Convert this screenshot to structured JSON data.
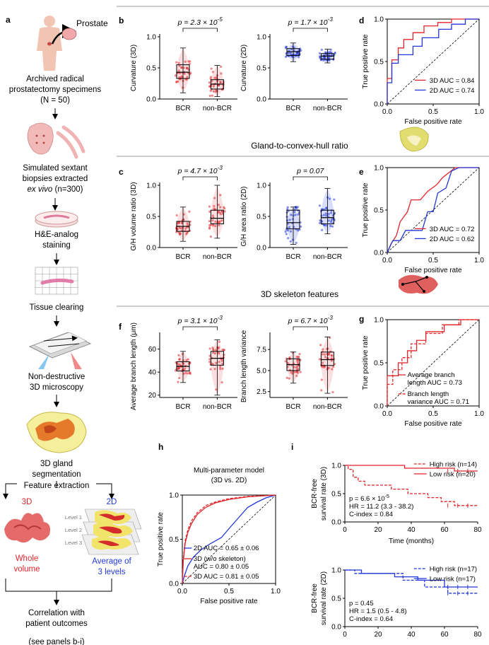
{
  "colors": {
    "red": "#e0262b",
    "blue": "#2238d8",
    "lightred": "#f3a3a6",
    "lightblue": "#8f9ef0",
    "grey": "#888888"
  },
  "panel_a": {
    "label": "a",
    "prostate_label": "Prostate",
    "specimens": "Archived radical",
    "specimens2": "prostatectomy specimens",
    "specimens_n": "(N = 50)",
    "biopsies1": "Simulated sextant",
    "biopsies2": "biopsies extracted",
    "biopsies3_a": "ex vivo",
    "biopsies3_b": " (n=300)",
    "he1": "H&E-analog",
    "he2": "staining",
    "clearing": "Tissue clearing",
    "micro1": "Non-destructive",
    "micro2": "3D microscopy",
    "seg1": "3D gland",
    "seg2": "segmentation",
    "feature": "Feature extraction",
    "label_3d": "3D",
    "label_2d": "2D",
    "levels": [
      "Level 1",
      "Level 2",
      "Level 3"
    ],
    "whole1": "Whole",
    "whole2": "volume",
    "avg1": "Average of",
    "avg2": "3 levels",
    "corr1": "Correlation with",
    "corr2": "patient outcomes",
    "corr3": "(see panels b-i)"
  },
  "sections": {
    "hull": "Gland-to-convex-hull ratio",
    "skeleton": "3D skeleton features"
  },
  "chart_data": [
    {
      "panel": "b",
      "type": "box",
      "title_p": "p = 2.3 × 10",
      "title_exp": "-5",
      "ylabel": "Curvature (3D)",
      "categories": [
        "BCR",
        "non-BCR"
      ],
      "ylim": [
        0,
        1.0
      ],
      "yticks": [
        "0.0",
        "0.5",
        "1.0"
      ],
      "boxes": [
        {
          "q1": 0.33,
          "median": 0.43,
          "q3": 0.55,
          "lo": 0.1,
          "hi": 0.82
        },
        {
          "q1": 0.16,
          "median": 0.24,
          "q3": 0.31,
          "lo": 0.04,
          "hi": 0.54
        }
      ],
      "color": "red"
    },
    {
      "panel": "b2",
      "type": "box",
      "title_p": "p = 1.7 × 10",
      "title_exp": "-3",
      "ylabel": "Curvature (2D)",
      "categories": [
        "BCR",
        "non-BCR"
      ],
      "ylim": [
        0,
        1.0
      ],
      "yticks": [
        "0.0",
        "0.5",
        "1.0"
      ],
      "boxes": [
        {
          "q1": 0.7,
          "median": 0.76,
          "q3": 0.81,
          "lo": 0.6,
          "hi": 0.9
        },
        {
          "q1": 0.64,
          "median": 0.69,
          "q3": 0.73,
          "lo": 0.58,
          "hi": 0.8
        }
      ],
      "color": "blue"
    },
    {
      "panel": "c",
      "type": "box",
      "title_p": "p = 4.7 × 10",
      "title_exp": "-3",
      "ylabel": "G/H volume ratio (3D)",
      "categories": [
        "BCR",
        "non-BCR"
      ],
      "ylim": [
        0,
        1.0
      ],
      "yticks": [
        "0.0",
        "0.5",
        "1.0"
      ],
      "boxes": [
        {
          "q1": 0.26,
          "median": 0.34,
          "q3": 0.42,
          "lo": 0.1,
          "hi": 0.65
        },
        {
          "q1": 0.38,
          "median": 0.47,
          "q3": 0.6,
          "lo": 0.15,
          "hi": 1.0
        }
      ],
      "color": "red"
    },
    {
      "panel": "c2",
      "type": "box",
      "title_p": "p = 0.07",
      "title_exp": "",
      "ylabel": "G/H area ratio (2D)",
      "categories": [
        "BCR",
        "non-BCR"
      ],
      "ylim": [
        0,
        1.0
      ],
      "yticks": [
        "0.0",
        "0.5",
        "1.0"
      ],
      "boxes": [
        {
          "q1": 0.3,
          "median": 0.4,
          "q3": 0.6,
          "lo": 0.05,
          "hi": 0.65
        },
        {
          "q1": 0.38,
          "median": 0.48,
          "q3": 0.6,
          "lo": 0.22,
          "hi": 0.95
        }
      ],
      "color": "blue"
    },
    {
      "panel": "f",
      "type": "box",
      "title_p": "p = 3.1 × 10",
      "title_exp": "-3",
      "ylabel": "Average branch length (μm)",
      "categories": [
        "BCR",
        "non-BCR"
      ],
      "ylim": [
        18,
        72
      ],
      "yticks": [
        "20",
        "40",
        "60"
      ],
      "boxes": [
        {
          "q1": 41,
          "median": 45,
          "q3": 49,
          "lo": 31,
          "hi": 58
        },
        {
          "q1": 46,
          "median": 52,
          "q3": 58,
          "lo": 20,
          "hi": 68
        }
      ],
      "color": "red"
    },
    {
      "panel": "f2",
      "type": "box",
      "title_p": "p = 6.7 × 10",
      "title_exp": "-3",
      "ylabel": "Branch length variance",
      "categories": [
        "BCR",
        "non-BCR"
      ],
      "ylim": [
        1.8,
        9.2
      ],
      "yticks": [
        "2.5",
        "5.0",
        "7.5"
      ],
      "boxes": [
        {
          "q1": 5.0,
          "median": 5.7,
          "q3": 6.4,
          "lo": 3.5,
          "hi": 7.2
        },
        {
          "q1": 5.6,
          "median": 6.3,
          "q3": 7.2,
          "lo": 2.3,
          "hi": 9.0
        }
      ],
      "color": "red"
    },
    {
      "panel": "d",
      "type": "roc",
      "xlabel": "False positive rate",
      "ylabel": "True positive rate",
      "ticks": [
        "0.0",
        "0.5",
        "1.0"
      ],
      "series": [
        {
          "name": "3D AUC = 0.84",
          "color": "red",
          "points": [
            [
              0,
              0
            ],
            [
              0,
              0.3
            ],
            [
              0.05,
              0.3
            ],
            [
              0.05,
              0.52
            ],
            [
              0.12,
              0.52
            ],
            [
              0.12,
              0.66
            ],
            [
              0.18,
              0.66
            ],
            [
              0.18,
              0.76
            ],
            [
              0.28,
              0.76
            ],
            [
              0.28,
              0.84
            ],
            [
              0.4,
              0.84
            ],
            [
              0.4,
              0.92
            ],
            [
              0.55,
              0.92
            ],
            [
              0.55,
              0.96
            ],
            [
              0.7,
              0.96
            ],
            [
              0.7,
              1
            ],
            [
              1,
              1
            ]
          ]
        },
        {
          "name": "2D AUC = 0.74",
          "color": "blue",
          "points": [
            [
              0,
              0
            ],
            [
              0,
              0.25
            ],
            [
              0.05,
              0.25
            ],
            [
              0.05,
              0.48
            ],
            [
              0.12,
              0.48
            ],
            [
              0.12,
              0.58
            ],
            [
              0.28,
              0.58
            ],
            [
              0.28,
              0.68
            ],
            [
              0.38,
              0.68
            ],
            [
              0.38,
              0.78
            ],
            [
              0.56,
              0.78
            ],
            [
              0.56,
              0.88
            ],
            [
              0.7,
              0.88
            ],
            [
              0.7,
              0.94
            ],
            [
              0.85,
              0.94
            ],
            [
              0.85,
              1
            ],
            [
              1,
              1
            ]
          ]
        }
      ]
    },
    {
      "panel": "e",
      "type": "roc",
      "xlabel": "False positive rate",
      "ylabel": "True positive rate",
      "ticks": [
        "0.0",
        "0.5",
        "1.0"
      ],
      "series": [
        {
          "name": "3D AUC = 0.72",
          "color": "red",
          "points": [
            [
              0,
              0
            ],
            [
              0.04,
              0.1
            ],
            [
              0.1,
              0.2
            ],
            [
              0.14,
              0.36
            ],
            [
              0.22,
              0.48
            ],
            [
              0.26,
              0.62
            ],
            [
              0.36,
              0.62
            ],
            [
              0.44,
              0.72
            ],
            [
              0.54,
              0.8
            ],
            [
              0.6,
              0.88
            ],
            [
              0.74,
              1
            ],
            [
              1,
              1
            ]
          ]
        },
        {
          "name": "2D AUC = 0.62",
          "color": "blue",
          "points": [
            [
              0,
              0
            ],
            [
              0.06,
              0.14
            ],
            [
              0.14,
              0.14
            ],
            [
              0.2,
              0.26
            ],
            [
              0.38,
              0.26
            ],
            [
              0.44,
              0.48
            ],
            [
              0.5,
              0.48
            ],
            [
              0.55,
              0.7
            ],
            [
              0.64,
              0.76
            ],
            [
              0.7,
              0.96
            ],
            [
              0.78,
              1
            ],
            [
              1,
              1
            ]
          ]
        }
      ]
    },
    {
      "panel": "g",
      "type": "roc",
      "xlabel": "False positive rate",
      "ylabel": "True positive rate",
      "ticks": [
        "0.0",
        "0.5",
        "1.0"
      ],
      "series": [
        {
          "name": "Average branch length AUC = 0.73",
          "color": "red",
          "dash": false,
          "points": [
            [
              0,
              0
            ],
            [
              0,
              0.35
            ],
            [
              0.12,
              0.35
            ],
            [
              0.12,
              0.5
            ],
            [
              0.22,
              0.5
            ],
            [
              0.22,
              0.64
            ],
            [
              0.32,
              0.64
            ],
            [
              0.32,
              0.76
            ],
            [
              0.42,
              0.76
            ],
            [
              0.42,
              0.86
            ],
            [
              0.62,
              0.86
            ],
            [
              0.62,
              0.94
            ],
            [
              0.8,
              0.94
            ],
            [
              0.8,
              1
            ],
            [
              1,
              1
            ]
          ]
        },
        {
          "name": "Branch length variance AUC = 0.71",
          "color": "red",
          "dash": true,
          "points": [
            [
              0,
              0
            ],
            [
              0,
              0.25
            ],
            [
              0.06,
              0.25
            ],
            [
              0.06,
              0.42
            ],
            [
              0.16,
              0.42
            ],
            [
              0.16,
              0.56
            ],
            [
              0.26,
              0.56
            ],
            [
              0.26,
              0.72
            ],
            [
              0.42,
              0.72
            ],
            [
              0.42,
              0.84
            ],
            [
              0.6,
              0.84
            ],
            [
              0.6,
              0.94
            ],
            [
              0.78,
              0.94
            ],
            [
              0.78,
              1
            ],
            [
              1,
              1
            ]
          ]
        }
      ]
    },
    {
      "panel": "h",
      "type": "roc",
      "title1": "Multi-parameter model",
      "title2": "(3D vs. 2D)",
      "xlabel": "False positive rate",
      "ylabel": "True positive rate",
      "ticks": [
        "0.0",
        "0.5",
        "1.0"
      ],
      "series": [
        {
          "name": "2D AUC = 0.65 ± 0.06",
          "color": "blue",
          "dash": false,
          "points": [
            [
              0,
              0
            ],
            [
              0.02,
              0.08
            ],
            [
              0.06,
              0.2
            ],
            [
              0.12,
              0.3
            ],
            [
              0.2,
              0.38
            ],
            [
              0.3,
              0.45
            ],
            [
              0.42,
              0.52
            ],
            [
              0.5,
              0.62
            ],
            [
              0.6,
              0.74
            ],
            [
              0.7,
              0.86
            ],
            [
              0.8,
              0.92
            ],
            [
              0.9,
              0.97
            ],
            [
              1,
              1
            ]
          ]
        },
        {
          "name1": "3D (w/o skeleton)",
          "name": "AUC = 0.80 ± 0.05",
          "color": "red",
          "dash": false,
          "points": [
            [
              0,
              0
            ],
            [
              0.01,
              0.25
            ],
            [
              0.03,
              0.45
            ],
            [
              0.06,
              0.58
            ],
            [
              0.1,
              0.68
            ],
            [
              0.16,
              0.78
            ],
            [
              0.25,
              0.86
            ],
            [
              0.35,
              0.91
            ],
            [
              0.5,
              0.95
            ],
            [
              0.7,
              0.98
            ],
            [
              1,
              1
            ]
          ]
        },
        {
          "name": "3D AUC = 0.81 ± 0.05",
          "color": "red",
          "dash": true,
          "points": [
            [
              0,
              0
            ],
            [
              0.01,
              0.28
            ],
            [
              0.03,
              0.48
            ],
            [
              0.06,
              0.61
            ],
            [
              0.1,
              0.71
            ],
            [
              0.16,
              0.8
            ],
            [
              0.25,
              0.88
            ],
            [
              0.35,
              0.92
            ],
            [
              0.5,
              0.96
            ],
            [
              0.7,
              0.985
            ],
            [
              1,
              1
            ]
          ]
        }
      ]
    },
    {
      "panel": "i1",
      "type": "km",
      "ylabel1": "BCR-free",
      "ylabel2": "survival rate (3D)",
      "xlabel": "Time (months)",
      "xticks": [
        "0",
        "20",
        "40",
        "60",
        "80"
      ],
      "yticks": [
        "0.0",
        "0.5",
        "1.0"
      ],
      "series": [
        {
          "name": "High risk (n=14)",
          "color": "red",
          "dash": true,
          "points": [
            [
              0,
              1
            ],
            [
              2,
              0.93
            ],
            [
              5,
              0.79
            ],
            [
              8,
              0.72
            ],
            [
              12,
              0.65
            ],
            [
              28,
              0.58
            ],
            [
              38,
              0.5
            ],
            [
              50,
              0.43
            ],
            [
              58,
              0.36
            ],
            [
              66,
              0.29
            ],
            [
              80,
              0.29
            ]
          ]
        },
        {
          "name": "Low risk (n=20)",
          "color": "red",
          "dash": false,
          "points": [
            [
              0,
              1
            ],
            [
              36,
              1
            ],
            [
              36,
              0.95
            ],
            [
              66,
              0.95
            ],
            [
              66,
              0.9
            ],
            [
              80,
              0.9
            ]
          ]
        }
      ],
      "stats": [
        "p = 6.6 × 10",
        "HR = 11.2 (3.3 - 38.2)",
        "C-index = 0.84"
      ],
      "stats_exp": "-5"
    },
    {
      "panel": "i2",
      "type": "km",
      "ylabel1": "BCR-free",
      "ylabel2": "survival rate (2D)",
      "xlabel": "",
      "xticks": [
        "0",
        "20",
        "40",
        "60",
        "80"
      ],
      "yticks": [
        "0.0",
        "0.5",
        "1.0"
      ],
      "series": [
        {
          "name": "High risk (n=17)",
          "color": "blue",
          "dash": true,
          "points": [
            [
              0,
              1
            ],
            [
              6,
              1
            ],
            [
              6,
              0.94
            ],
            [
              35,
              0.94
            ],
            [
              35,
              0.82
            ],
            [
              48,
              0.82
            ],
            [
              48,
              0.7
            ],
            [
              62,
              0.7
            ],
            [
              62,
              0.59
            ],
            [
              80,
              0.59
            ]
          ]
        },
        {
          "name": "Low risk (n=17)",
          "color": "blue",
          "dash": false,
          "points": [
            [
              0,
              1
            ],
            [
              10,
              1
            ],
            [
              10,
              0.94
            ],
            [
              30,
              0.94
            ],
            [
              30,
              0.88
            ],
            [
              44,
              0.88
            ],
            [
              44,
              0.82
            ],
            [
              60,
              0.82
            ],
            [
              60,
              0.7
            ],
            [
              80,
              0.7
            ]
          ]
        }
      ],
      "stats": [
        "p = 0.45",
        "HR = 1.5 (0.5 - 4.8)",
        "C-index = 0.64"
      ],
      "stats_exp": ""
    }
  ]
}
